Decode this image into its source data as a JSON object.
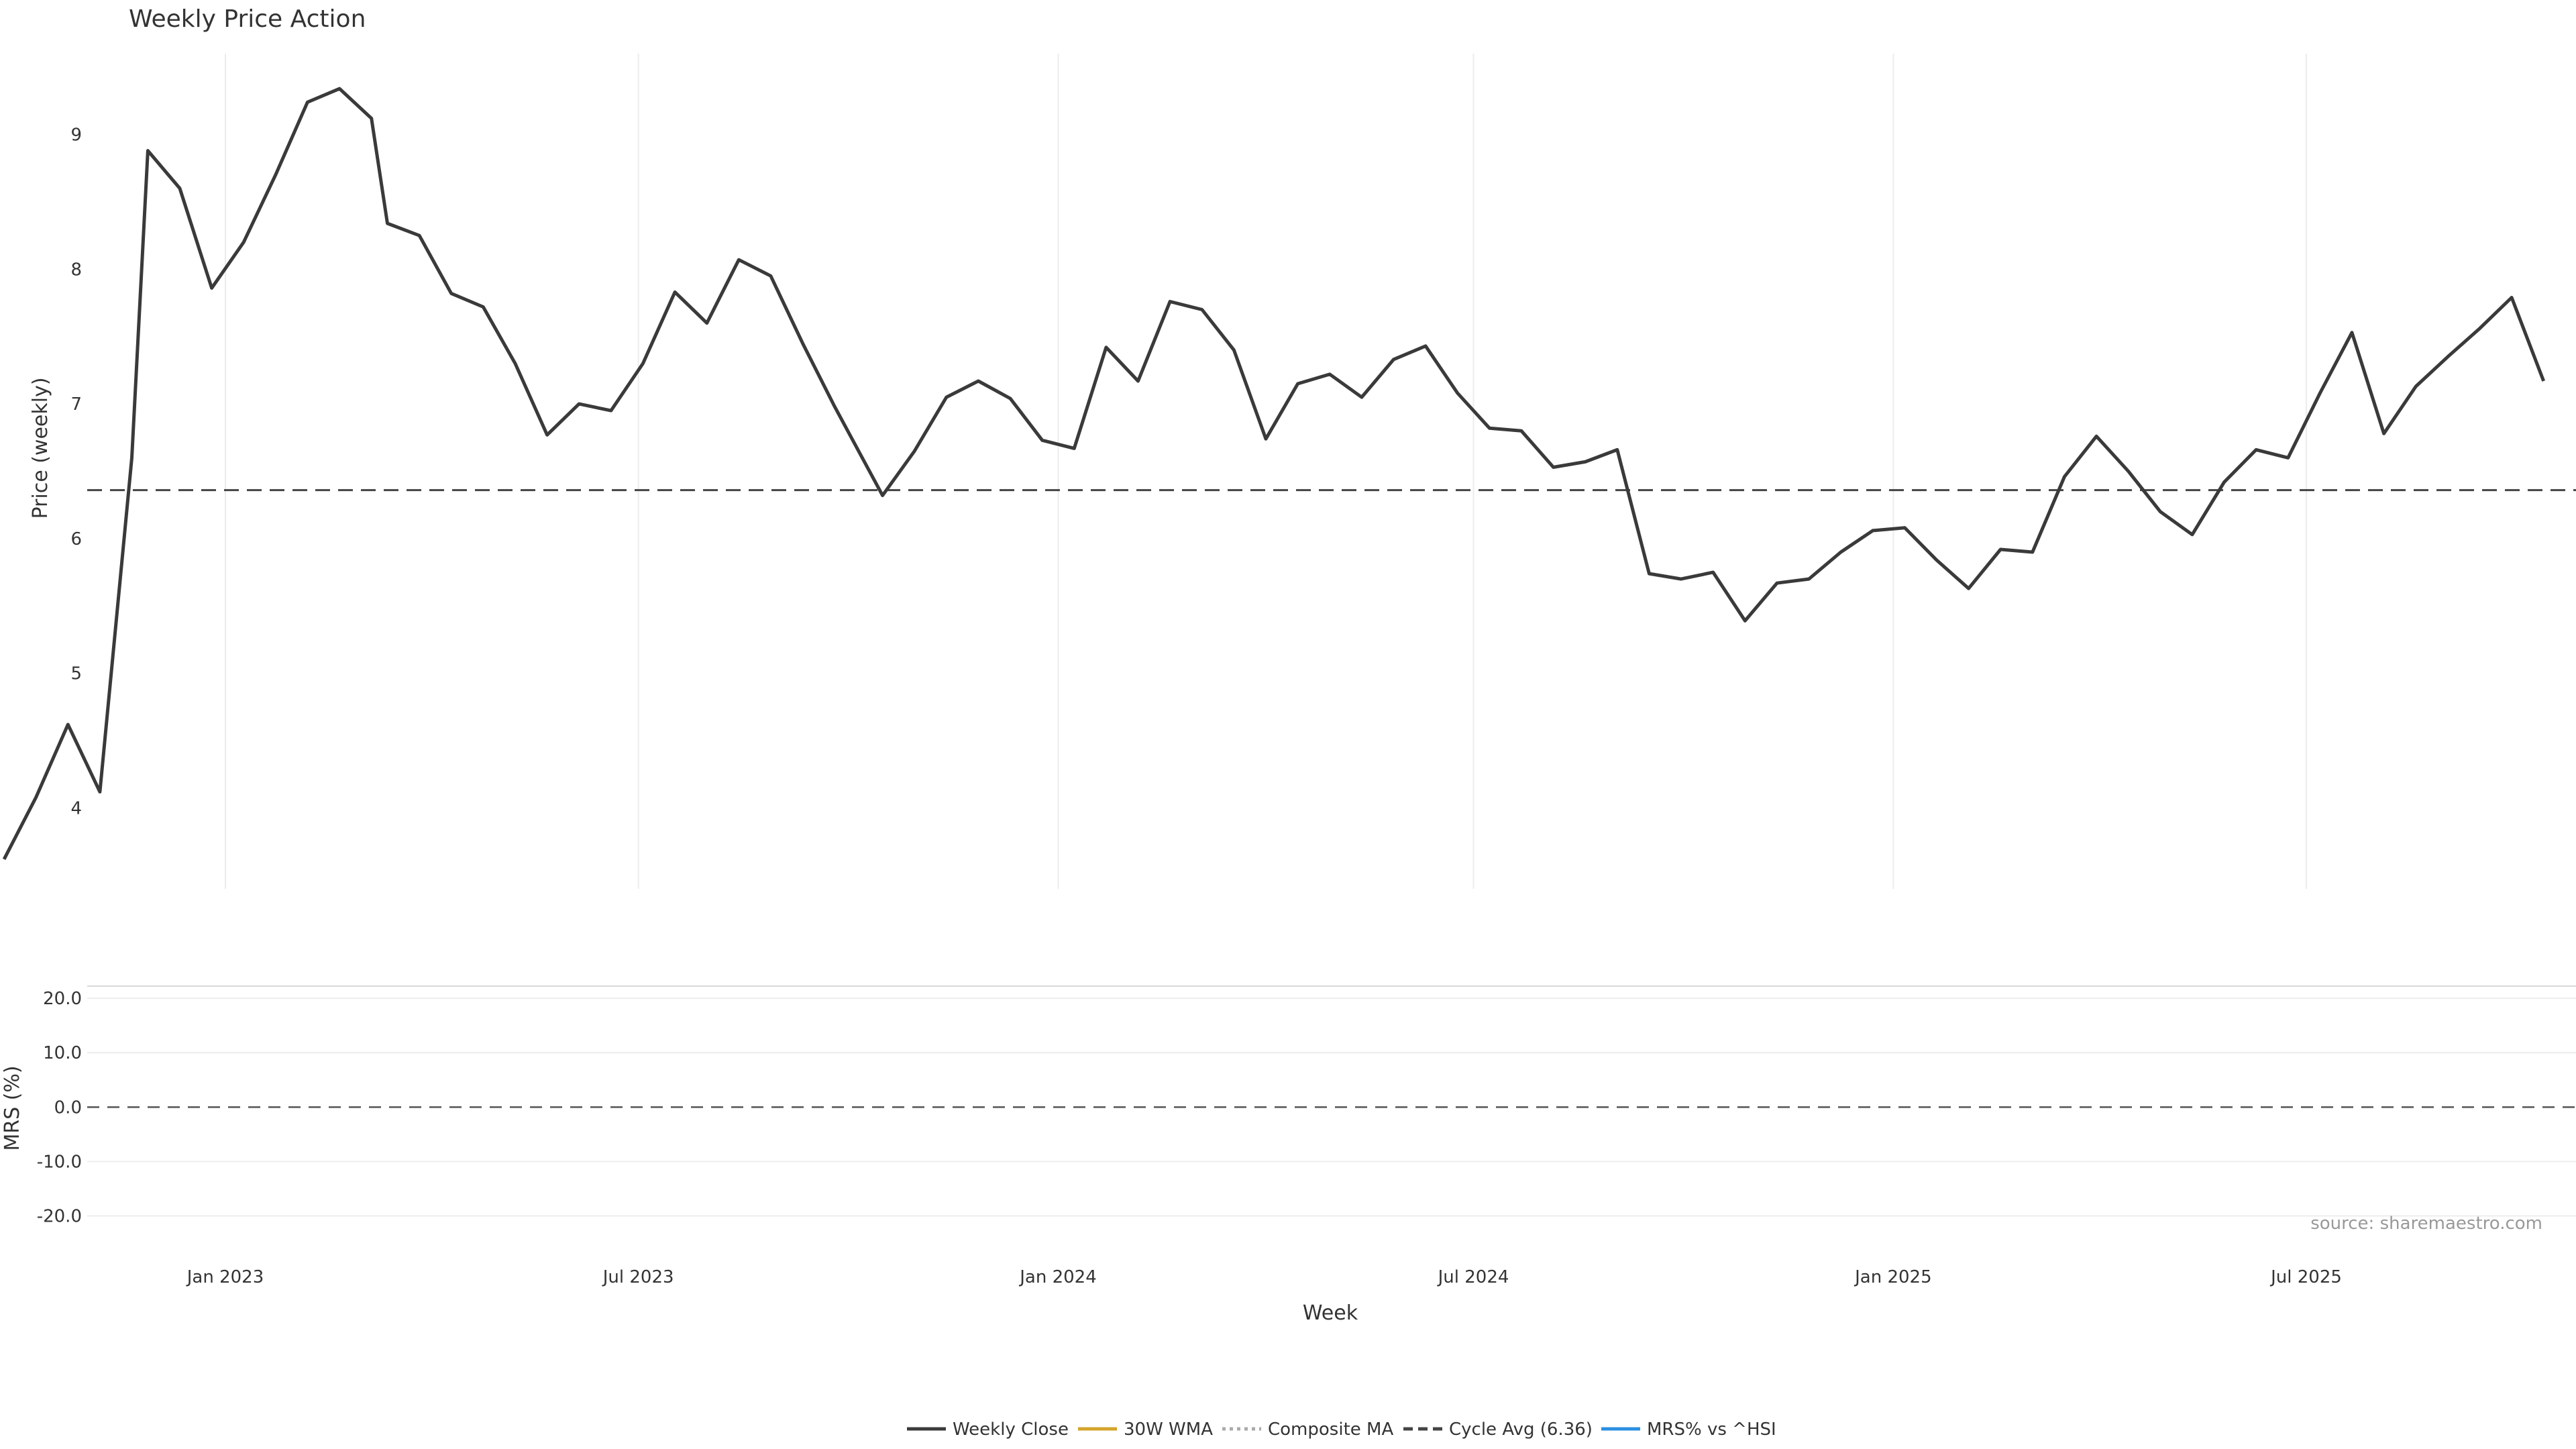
{
  "chart_data": [
    {
      "type": "line",
      "title": "Weekly Price Action",
      "ylabel": "Price (weekly)",
      "ylim": [
        3.4,
        9.6
      ],
      "yticks": [
        4,
        5,
        6,
        7,
        8,
        9
      ],
      "x_range": [
        "2022-09-26",
        "2025-10-13"
      ],
      "cycle_avg": 6.36,
      "series": [
        {
          "name": "Weekly Close",
          "color": "#3a3a3a",
          "dash": "solid",
          "points": [
            [
              "2022-09-26",
              3.62
            ],
            [
              "2022-10-10",
              4.08
            ],
            [
              "2022-10-24",
              4.62
            ],
            [
              "2022-11-07",
              4.12
            ],
            [
              "2022-11-21",
              6.6
            ],
            [
              "2022-11-28",
              8.88
            ],
            [
              "2022-12-12",
              8.6
            ],
            [
              "2022-12-26",
              7.86
            ],
            [
              "2023-01-09",
              8.2
            ],
            [
              "2023-01-23",
              8.7
            ],
            [
              "2023-02-06",
              9.24
            ],
            [
              "2023-02-20",
              9.34
            ],
            [
              "2023-03-06",
              9.12
            ],
            [
              "2023-03-13",
              8.34
            ],
            [
              "2023-03-27",
              8.25
            ],
            [
              "2023-04-10",
              7.82
            ],
            [
              "2023-04-24",
              7.72
            ],
            [
              "2023-05-08",
              7.3
            ],
            [
              "2023-05-22",
              6.77
            ],
            [
              "2023-06-05",
              7.0
            ],
            [
              "2023-06-19",
              6.95
            ],
            [
              "2023-07-03",
              7.3
            ],
            [
              "2023-07-17",
              7.83
            ],
            [
              "2023-07-31",
              7.6
            ],
            [
              "2023-08-14",
              8.07
            ],
            [
              "2023-08-28",
              7.95
            ],
            [
              "2023-09-11",
              7.45
            ],
            [
              "2023-09-25",
              6.98
            ],
            [
              "2023-10-16",
              6.32
            ],
            [
              "2023-10-30",
              6.65
            ],
            [
              "2023-11-13",
              7.05
            ],
            [
              "2023-11-27",
              7.17
            ],
            [
              "2023-12-11",
              7.04
            ],
            [
              "2023-12-25",
              6.73
            ],
            [
              "2024-01-08",
              6.67
            ],
            [
              "2024-01-22",
              7.42
            ],
            [
              "2024-02-05",
              7.17
            ],
            [
              "2024-02-19",
              7.76
            ],
            [
              "2024-03-04",
              7.7
            ],
            [
              "2024-03-18",
              7.4
            ],
            [
              "2024-04-01",
              6.74
            ],
            [
              "2024-04-15",
              7.15
            ],
            [
              "2024-04-29",
              7.22
            ],
            [
              "2024-05-13",
              7.05
            ],
            [
              "2024-05-27",
              7.33
            ],
            [
              "2024-06-10",
              7.43
            ],
            [
              "2024-06-24",
              7.08
            ],
            [
              "2024-07-08",
              6.82
            ],
            [
              "2024-07-22",
              6.8
            ],
            [
              "2024-08-05",
              6.53
            ],
            [
              "2024-08-19",
              6.57
            ],
            [
              "2024-09-02",
              6.66
            ],
            [
              "2024-09-16",
              5.74
            ],
            [
              "2024-09-30",
              5.7
            ],
            [
              "2024-10-14",
              5.75
            ],
            [
              "2024-10-28",
              5.39
            ],
            [
              "2024-11-11",
              5.67
            ],
            [
              "2024-11-25",
              5.7
            ],
            [
              "2024-12-09",
              5.9
            ],
            [
              "2024-12-23",
              6.06
            ],
            [
              "2025-01-06",
              6.08
            ],
            [
              "2025-01-20",
              5.84
            ],
            [
              "2025-02-03",
              5.63
            ],
            [
              "2025-02-17",
              5.92
            ],
            [
              "2025-03-03",
              5.9
            ],
            [
              "2025-03-17",
              6.46
            ],
            [
              "2025-03-31",
              6.76
            ],
            [
              "2025-04-14",
              6.5
            ],
            [
              "2025-04-28",
              6.2
            ],
            [
              "2025-05-12",
              6.03
            ],
            [
              "2025-05-26",
              6.42
            ],
            [
              "2025-06-09",
              6.66
            ],
            [
              "2025-06-23",
              6.6
            ],
            [
              "2025-07-07",
              7.08
            ],
            [
              "2025-07-21",
              7.53
            ],
            [
              "2025-08-04",
              6.78
            ],
            [
              "2025-08-18",
              7.13
            ],
            [
              "2025-09-01",
              7.35
            ],
            [
              "2025-09-15",
              7.56
            ],
            [
              "2025-09-29",
              7.79
            ],
            [
              "2025-10-13",
              7.17
            ]
          ]
        },
        {
          "name": "30W WMA",
          "color": "#d4a32a",
          "dash": "solid",
          "points": []
        },
        {
          "name": "Composite MA",
          "color": "#aaaaaa",
          "dash": "dotted",
          "points": []
        },
        {
          "name": "Cycle Avg (6.36)",
          "color": "#444444",
          "dash": "dashed",
          "points": []
        }
      ]
    },
    {
      "type": "line",
      "xlabel": "Week",
      "ylabel": "MRS (%)",
      "ylim": [
        -24,
        21
      ],
      "yticks": [
        -20,
        -10,
        0,
        10,
        20
      ],
      "ytick_labels": [
        "-20.0",
        "-10.0",
        "0.0",
        "10.0",
        "20.0"
      ],
      "xticks": [
        {
          "date": "2023-01-01",
          "label": "Jan 2023"
        },
        {
          "date": "2023-07-01",
          "label": "Jul 2023"
        },
        {
          "date": "2024-01-01",
          "label": "Jan 2024"
        },
        {
          "date": "2024-07-01",
          "label": "Jul 2024"
        },
        {
          "date": "2025-01-01",
          "label": "Jan 2025"
        },
        {
          "date": "2025-07-01",
          "label": "Jul 2025"
        }
      ],
      "series": [
        {
          "name": "MRS% vs ^HSI",
          "color": "#2b8fe0",
          "points": []
        }
      ]
    }
  ],
  "annotation": "source: sharemaestro.com",
  "legend": {
    "placement": "bottom-center",
    "items": [
      "Weekly Close",
      "30W WMA",
      "Composite MA",
      "Cycle Avg (6.36)",
      "MRS% vs ^HSI"
    ]
  }
}
